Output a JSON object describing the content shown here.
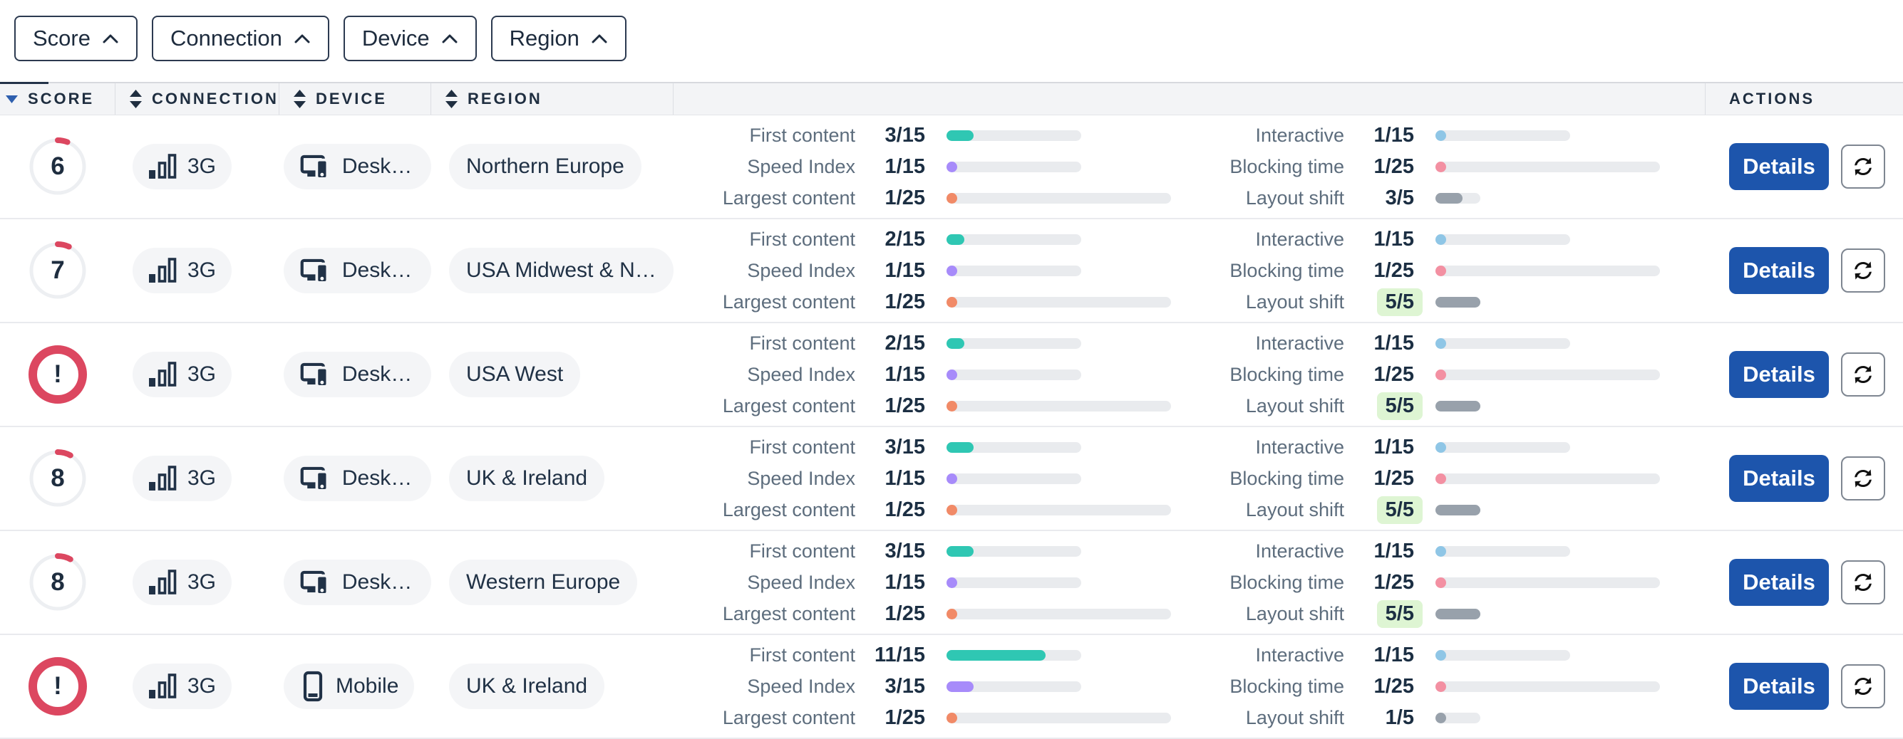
{
  "filters": [
    {
      "label": "Score"
    },
    {
      "label": "Connection"
    },
    {
      "label": "Device"
    },
    {
      "label": "Region"
    }
  ],
  "colors": {
    "accent_blue": "#1d55ac",
    "danger_red": "#dc4760",
    "success_highlight_bg": "#def5d3",
    "sort_active_blue": "#2e5fae",
    "pill_bg": "#f4f5f7",
    "bar_track": "#e9ebee",
    "icon_navy": "#213247"
  },
  "table": {
    "headers": [
      {
        "id": "score",
        "label": "SCORE",
        "sort": "active-desc"
      },
      {
        "id": "connection",
        "label": "CONNECTION",
        "sort": "both"
      },
      {
        "id": "device",
        "label": "DEVICE",
        "sort": "both"
      },
      {
        "id": "region",
        "label": "REGION",
        "sort": "both"
      },
      {
        "id": "metrics",
        "label": "",
        "sort": "none"
      },
      {
        "id": "actions",
        "label": "ACTIONS",
        "sort": "none"
      }
    ],
    "metric_colors": {
      "first_content": "#2fc7b3",
      "speed_index": "#a78bfa",
      "largest_content": "#f18a67",
      "interactive": "#8fc6e6",
      "blocking_time": "#f390a2",
      "layout_shift": "#98a1ab"
    },
    "rows": [
      {
        "score": "6",
        "error": false,
        "connection": "3G",
        "device": "Desktop",
        "device_type": "desktop",
        "region": "Northern Europe",
        "metrics_left": [
          {
            "key": "first_content",
            "label": "First content",
            "value": 3,
            "max": 15,
            "display": "3/15"
          },
          {
            "key": "speed_index",
            "label": "Speed Index",
            "value": 1,
            "max": 15,
            "display": "1/15"
          },
          {
            "key": "largest_content",
            "label": "Largest content",
            "value": 1,
            "max": 25,
            "display": "1/25"
          }
        ],
        "metrics_right": [
          {
            "key": "interactive",
            "label": "Interactive",
            "value": 1,
            "max": 15,
            "display": "1/15"
          },
          {
            "key": "blocking_time",
            "label": "Blocking time",
            "value": 1,
            "max": 25,
            "display": "1/25"
          },
          {
            "key": "layout_shift",
            "label": "Layout shift",
            "value": 3,
            "max": 5,
            "display": "3/5",
            "highlight": false
          }
        ],
        "details_label": "Details"
      },
      {
        "score": "7",
        "error": false,
        "connection": "3G",
        "device": "Desktop",
        "device_type": "desktop",
        "region": "USA Midwest & No…",
        "metrics_left": [
          {
            "key": "first_content",
            "label": "First content",
            "value": 2,
            "max": 15,
            "display": "2/15"
          },
          {
            "key": "speed_index",
            "label": "Speed Index",
            "value": 1,
            "max": 15,
            "display": "1/15"
          },
          {
            "key": "largest_content",
            "label": "Largest content",
            "value": 1,
            "max": 25,
            "display": "1/25"
          }
        ],
        "metrics_right": [
          {
            "key": "interactive",
            "label": "Interactive",
            "value": 1,
            "max": 15,
            "display": "1/15"
          },
          {
            "key": "blocking_time",
            "label": "Blocking time",
            "value": 1,
            "max": 25,
            "display": "1/25"
          },
          {
            "key": "layout_shift",
            "label": "Layout shift",
            "value": 5,
            "max": 5,
            "display": "5/5",
            "highlight": true
          }
        ],
        "details_label": "Details"
      },
      {
        "score": "!",
        "error": true,
        "connection": "3G",
        "device": "Desktop",
        "device_type": "desktop",
        "region": "USA West",
        "metrics_left": [
          {
            "key": "first_content",
            "label": "First content",
            "value": 2,
            "max": 15,
            "display": "2/15"
          },
          {
            "key": "speed_index",
            "label": "Speed Index",
            "value": 1,
            "max": 15,
            "display": "1/15"
          },
          {
            "key": "largest_content",
            "label": "Largest content",
            "value": 1,
            "max": 25,
            "display": "1/25"
          }
        ],
        "metrics_right": [
          {
            "key": "interactive",
            "label": "Interactive",
            "value": 1,
            "max": 15,
            "display": "1/15"
          },
          {
            "key": "blocking_time",
            "label": "Blocking time",
            "value": 1,
            "max": 25,
            "display": "1/25"
          },
          {
            "key": "layout_shift",
            "label": "Layout shift",
            "value": 5,
            "max": 5,
            "display": "5/5",
            "highlight": true
          }
        ],
        "details_label": "Details"
      },
      {
        "score": "8",
        "error": false,
        "connection": "3G",
        "device": "Desktop",
        "device_type": "desktop",
        "region": "UK & Ireland",
        "metrics_left": [
          {
            "key": "first_content",
            "label": "First content",
            "value": 3,
            "max": 15,
            "display": "3/15"
          },
          {
            "key": "speed_index",
            "label": "Speed Index",
            "value": 1,
            "max": 15,
            "display": "1/15"
          },
          {
            "key": "largest_content",
            "label": "Largest content",
            "value": 1,
            "max": 25,
            "display": "1/25"
          }
        ],
        "metrics_right": [
          {
            "key": "interactive",
            "label": "Interactive",
            "value": 1,
            "max": 15,
            "display": "1/15"
          },
          {
            "key": "blocking_time",
            "label": "Blocking time",
            "value": 1,
            "max": 25,
            "display": "1/25"
          },
          {
            "key": "layout_shift",
            "label": "Layout shift",
            "value": 5,
            "max": 5,
            "display": "5/5",
            "highlight": true
          }
        ],
        "details_label": "Details"
      },
      {
        "score": "8",
        "error": false,
        "connection": "3G",
        "device": "Desktop",
        "device_type": "desktop",
        "region": "Western Europe",
        "metrics_left": [
          {
            "key": "first_content",
            "label": "First content",
            "value": 3,
            "max": 15,
            "display": "3/15"
          },
          {
            "key": "speed_index",
            "label": "Speed Index",
            "value": 1,
            "max": 15,
            "display": "1/15"
          },
          {
            "key": "largest_content",
            "label": "Largest content",
            "value": 1,
            "max": 25,
            "display": "1/25"
          }
        ],
        "metrics_right": [
          {
            "key": "interactive",
            "label": "Interactive",
            "value": 1,
            "max": 15,
            "display": "1/15"
          },
          {
            "key": "blocking_time",
            "label": "Blocking time",
            "value": 1,
            "max": 25,
            "display": "1/25"
          },
          {
            "key": "layout_shift",
            "label": "Layout shift",
            "value": 5,
            "max": 5,
            "display": "5/5",
            "highlight": true
          }
        ],
        "details_label": "Details"
      },
      {
        "score": "!",
        "error": true,
        "connection": "3G",
        "device": "Mobile",
        "device_type": "mobile",
        "region": "UK & Ireland",
        "metrics_left": [
          {
            "key": "first_content",
            "label": "First content",
            "value": 11,
            "max": 15,
            "display": "11/15"
          },
          {
            "key": "speed_index",
            "label": "Speed Index",
            "value": 3,
            "max": 15,
            "display": "3/15"
          },
          {
            "key": "largest_content",
            "label": "Largest content",
            "value": 1,
            "max": 25,
            "display": "1/25"
          }
        ],
        "metrics_right": [
          {
            "key": "interactive",
            "label": "Interactive",
            "value": 1,
            "max": 15,
            "display": "1/15"
          },
          {
            "key": "blocking_time",
            "label": "Blocking time",
            "value": 1,
            "max": 25,
            "display": "1/25"
          },
          {
            "key": "layout_shift",
            "label": "Layout shift",
            "value": 1,
            "max": 5,
            "display": "1/5",
            "highlight": false
          }
        ],
        "details_label": "Details"
      }
    ]
  }
}
